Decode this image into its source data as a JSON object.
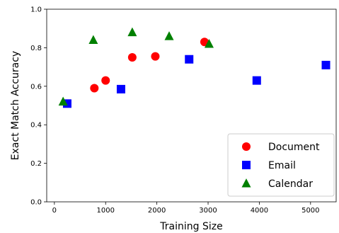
{
  "chart_data": {
    "type": "scatter",
    "title": "",
    "xlabel": "Training Size",
    "ylabel": "Exact Match Accuracy",
    "xlim": [
      -150,
      5500
    ],
    "ylim": [
      0.0,
      1.0
    ],
    "x_ticks": [
      0,
      1000,
      2000,
      3000,
      4000,
      5000
    ],
    "y_ticks": [
      0.0,
      0.2,
      0.4,
      0.6,
      0.8,
      1.0
    ],
    "x_tick_labels": [
      "0",
      "1000",
      "2000",
      "3000",
      "4000",
      "5000"
    ],
    "y_tick_labels": [
      "0.0",
      "0.2",
      "0.4",
      "0.6",
      "0.8",
      "1.0"
    ],
    "grid": false,
    "legend_position": "lower-right",
    "series": [
      {
        "name": "Document",
        "marker": "circle",
        "color": "#ff0000",
        "points": [
          {
            "x": 780,
            "y": 0.59
          },
          {
            "x": 1000,
            "y": 0.63
          },
          {
            "x": 1520,
            "y": 0.75
          },
          {
            "x": 1970,
            "y": 0.755
          },
          {
            "x": 2930,
            "y": 0.83
          }
        ]
      },
      {
        "name": "Email",
        "marker": "square",
        "color": "#0000ff",
        "points": [
          {
            "x": 250,
            "y": 0.51
          },
          {
            "x": 1300,
            "y": 0.585
          },
          {
            "x": 2630,
            "y": 0.74
          },
          {
            "x": 3950,
            "y": 0.63
          },
          {
            "x": 5300,
            "y": 0.71
          }
        ]
      },
      {
        "name": "Calendar",
        "marker": "triangle",
        "color": "#008000",
        "points": [
          {
            "x": 170,
            "y": 0.52
          },
          {
            "x": 760,
            "y": 0.84
          },
          {
            "x": 1520,
            "y": 0.88
          },
          {
            "x": 2240,
            "y": 0.86
          },
          {
            "x": 3020,
            "y": 0.82
          }
        ]
      }
    ]
  }
}
